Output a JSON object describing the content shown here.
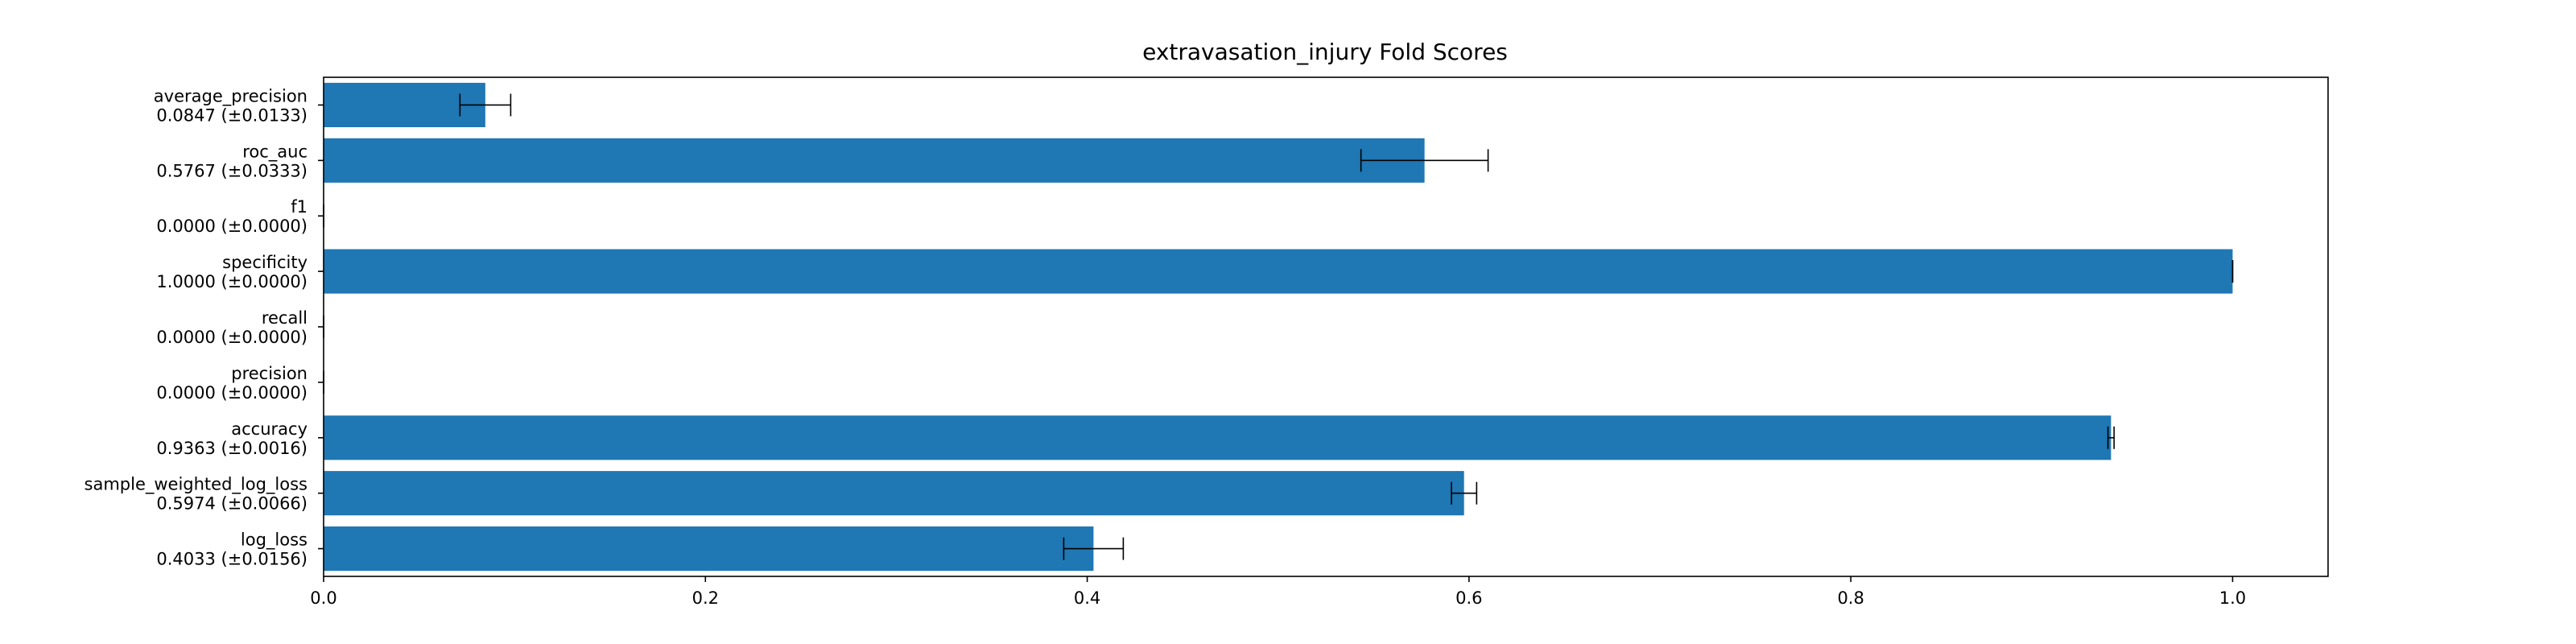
{
  "chart_data": {
    "type": "bar",
    "orientation": "horizontal",
    "title": "extravasation_injury Fold Scores",
    "xlabel": "",
    "ylabel": "",
    "xlim": [
      0,
      1.05
    ],
    "xticks": [
      0.0,
      0.2,
      0.4,
      0.6,
      0.8,
      1.0
    ],
    "xtick_labels": [
      "0.0",
      "0.2",
      "0.4",
      "0.6",
      "0.8",
      "1.0"
    ],
    "grid": false,
    "bar_color": "#1f77b4",
    "error_bar_color": "#000000",
    "categories": [
      "log_loss",
      "sample_weighted_log_loss",
      "accuracy",
      "precision",
      "recall",
      "specificity",
      "f1",
      "roc_auc",
      "average_precision"
    ],
    "category_labels": [
      "log_loss\n0.4033 (±0.0156)",
      "sample_weighted_log_loss\n0.5974 (±0.0066)",
      "accuracy\n0.9363 (±0.0016)",
      "precision\n0.0000 (±0.0000)",
      "recall\n0.0000 (±0.0000)",
      "specificity\n1.0000 (±0.0000)",
      "f1\n0.0000 (±0.0000)",
      "roc_auc\n0.5767 (±0.0333)",
      "average_precision\n0.0847 (±0.0133)"
    ],
    "values": [
      0.4033,
      0.5974,
      0.9363,
      0.0,
      0.0,
      1.0,
      0.0,
      0.5767,
      0.0847
    ],
    "errors": [
      0.0156,
      0.0066,
      0.0016,
      0.0,
      0.0,
      0.0,
      0.0,
      0.0333,
      0.0133
    ]
  }
}
